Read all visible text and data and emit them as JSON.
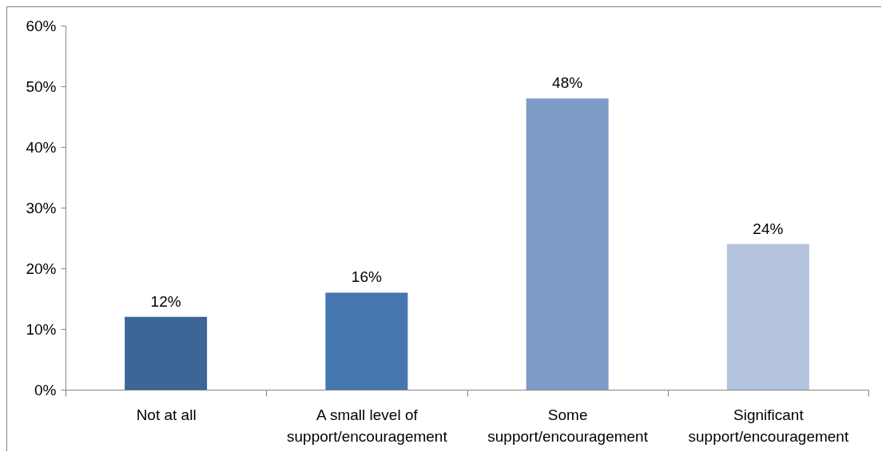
{
  "chart_data": {
    "type": "bar",
    "categories": [
      "Not at all",
      "A small level of support/encouragement",
      "Some support/encouragement",
      "Significant support/encouragement"
    ],
    "values": [
      12,
      16,
      48,
      24
    ],
    "colors": [
      "#3d6596",
      "#4676af",
      "#7f9bc7",
      "#b4c3de"
    ],
    "value_labels": [
      "12%",
      "16%",
      "48%",
      "24%"
    ],
    "ylim": [
      0,
      60
    ],
    "yticks": [
      {
        "value": 0,
        "label": "0%"
      },
      {
        "value": 10,
        "label": "10%"
      },
      {
        "value": 20,
        "label": "20%"
      },
      {
        "value": 30,
        "label": "30%"
      },
      {
        "value": 40,
        "label": "40%"
      },
      {
        "value": 50,
        "label": "50%"
      },
      {
        "value": 60,
        "label": "60%"
      }
    ],
    "grid": false
  }
}
